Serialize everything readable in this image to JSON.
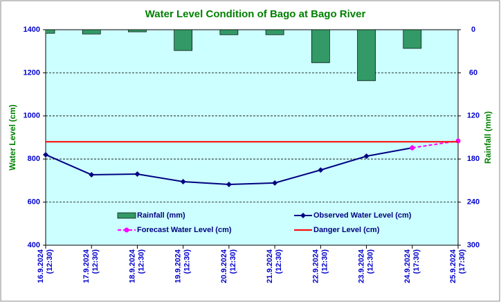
{
  "chart_data": {
    "type": "combo",
    "title": "Water Level Condition of Bago at Bago River",
    "ylabel": "Water Level (cm)",
    "y2label": "Rainfall (mm)",
    "categories": [
      "16.9.2024 (12:30)",
      "17.9.2024 (12:30)",
      "18.9.2024 (12:30)",
      "19.9.2024 (12:30)",
      "20.9.2024 (12:30)",
      "21.9.2024 (12:30)",
      "22.9.2024 (12:30)",
      "23.9.2024 (12:30)",
      "24.9.2024 (17:30)",
      "25.9.2024 (17:30)"
    ],
    "ylim": [
      400,
      1400
    ],
    "yticks": [
      400,
      600,
      800,
      1000,
      1200,
      1400
    ],
    "y2lim": [
      300,
      0
    ],
    "y2ticks": [
      0,
      60,
      120,
      180,
      240,
      300
    ],
    "grid": true,
    "series": [
      {
        "name": "Rainfall (mm)",
        "type": "bar",
        "axis": "y2",
        "color": "#339966",
        "values": [
          5,
          6,
          3,
          29,
          7,
          7,
          46,
          71,
          26,
          null
        ]
      },
      {
        "name": "Observed Water Level (cm)",
        "type": "line",
        "color": "#000080",
        "values": [
          820,
          727,
          730,
          695,
          682,
          689,
          749,
          813,
          852,
          null
        ]
      },
      {
        "name": "Forecast Water Level (cm)",
        "type": "line",
        "dashed": true,
        "color": "#ff00ff",
        "values": [
          null,
          null,
          null,
          null,
          null,
          null,
          null,
          null,
          852,
          884
        ]
      },
      {
        "name": "Danger Level (cm)",
        "type": "line",
        "color": "#ff0000",
        "values": [
          880,
          880,
          880,
          880,
          880,
          880,
          880,
          880,
          880,
          880
        ]
      }
    ]
  }
}
